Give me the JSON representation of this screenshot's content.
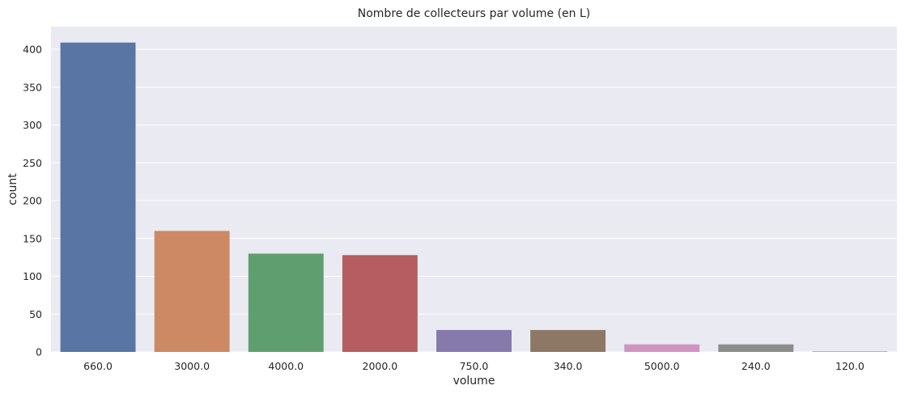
{
  "chart_data": {
    "type": "bar",
    "title": "Nombre de collecteurs par volume (en L)",
    "xlabel": "volume",
    "ylabel": "count",
    "categories": [
      "660.0",
      "3000.0",
      "4000.0",
      "2000.0",
      "750.0",
      "340.0",
      "5000.0",
      "240.0",
      "120.0"
    ],
    "values": [
      409,
      160,
      130,
      128,
      29,
      29,
      10,
      10,
      1
    ],
    "colors": [
      "#5975a4",
      "#cc8963",
      "#5f9e6e",
      "#b55d60",
      "#857aab",
      "#8d7866",
      "#d095bf",
      "#8c8c8c",
      "#c1b37f"
    ],
    "ylim": [
      0,
      430
    ],
    "yticks": [
      "0",
      "50",
      "100",
      "150",
      "200",
      "250",
      "300",
      "350",
      "400"
    ],
    "ytick_values": [
      0,
      50,
      100,
      150,
      200,
      250,
      300,
      350,
      400
    ],
    "background": "#eaeaf2",
    "grid": true
  }
}
